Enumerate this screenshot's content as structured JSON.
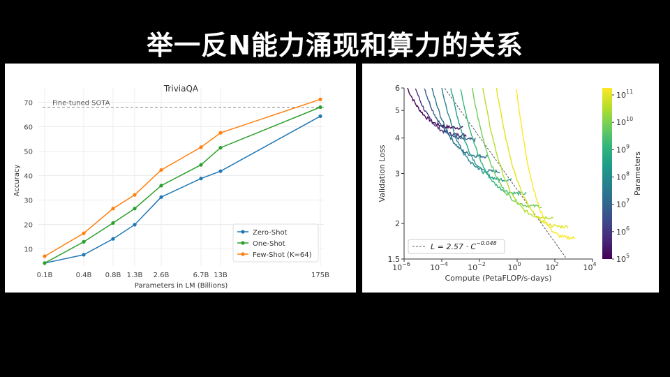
{
  "slide": {
    "title": "举一反N能力涌现和算力的关系"
  },
  "chart_data": [
    {
      "type": "line",
      "title": "TriviaQA",
      "xlabel": "Parameters in LM (Billions)",
      "ylabel": "Accuracy",
      "categories": [
        "0.1B",
        "0.4B",
        "0.8B",
        "1.3B",
        "2.6B",
        "6.7B",
        "13B",
        "175B"
      ],
      "yticks": [
        10,
        20,
        30,
        40,
        50,
        60,
        70
      ],
      "ylim": [
        3,
        73
      ],
      "grid": true,
      "legend_position": "bottom-right",
      "reference_line": {
        "label": "Fine-tuned SOTA",
        "value": 68
      },
      "series": [
        {
          "name": "Zero-Shot",
          "color": "#1f77b4",
          "values": [
            4.2,
            7.6,
            14.1,
            19.9,
            31.2,
            38.8,
            41.8,
            64.3
          ]
        },
        {
          "name": "One-Shot",
          "color": "#2ca02c",
          "values": [
            4.2,
            12.9,
            20.6,
            26.5,
            35.9,
            44.4,
            51.4,
            68.0
          ]
        },
        {
          "name": "Few-Shot (K=64)",
          "color": "#ff7f0e",
          "values": [
            7.0,
            16.4,
            26.5,
            32.1,
            42.3,
            51.6,
            57.5,
            71.2
          ]
        }
      ]
    },
    {
      "type": "line",
      "title": "",
      "xlabel": "Compute (PetaFLOP/s-days)",
      "ylabel": "Validation Loss",
      "xscale": "log",
      "yscale": "log",
      "xlim": [
        1e-06,
        10000
      ],
      "ylim": [
        1.5,
        6
      ],
      "xticks": [
        {
          "base": "10",
          "exp": "−6"
        },
        {
          "base": "10",
          "exp": "−4"
        },
        {
          "base": "10",
          "exp": "−2"
        },
        {
          "base": "10",
          "exp": "0"
        },
        {
          "base": "10",
          "exp": "2"
        },
        {
          "base": "10",
          "exp": "4"
        }
      ],
      "yticks": [
        "1.5",
        "2",
        "3",
        "4",
        "5",
        "6"
      ],
      "ytick_values": [
        1.5,
        2,
        3,
        4,
        5,
        6
      ],
      "legend_position": "bottom-left",
      "fit_line": {
        "label": "L = 2.57 · C",
        "exponent": "−0.048",
        "a": 2.57,
        "b": -0.048,
        "style": "dashed",
        "color": "#555555"
      },
      "series": [
        {
          "params": "1e5",
          "color": "#440154",
          "compute_start": 1.5e-06,
          "compute_end": 0.0013,
          "loss_start": 6.0,
          "loss_end": 4.35
        },
        {
          "params": "3e5",
          "color": "#46327e",
          "compute_start": 4e-06,
          "compute_end": 0.002,
          "loss_start": 6.0,
          "loss_end": 4.1
        },
        {
          "params": "1e6",
          "color": "#365c8d",
          "compute_start": 1.2e-05,
          "compute_end": 0.006,
          "loss_start": 6.0,
          "loss_end": 3.95
        },
        {
          "params": "3e6",
          "color": "#2c728e",
          "compute_start": 3e-05,
          "compute_end": 0.03,
          "loss_start": 6.0,
          "loss_end": 3.45
        },
        {
          "params": "1e7",
          "color": "#277f8e",
          "compute_start": 0.0001,
          "compute_end": 0.12,
          "loss_start": 6.0,
          "loss_end": 3.05
        },
        {
          "params": "3e7",
          "color": "#1f9e89",
          "compute_start": 0.0003,
          "compute_end": 0.5,
          "loss_start": 6.0,
          "loss_end": 2.85
        },
        {
          "params": "1e8",
          "color": "#35b779",
          "compute_start": 0.001,
          "compute_end": 3,
          "loss_start": 6.0,
          "loss_end": 2.55
        },
        {
          "params": "3e8",
          "color": "#6ece58",
          "compute_start": 0.004,
          "compute_end": 20,
          "loss_start": 6.0,
          "loss_end": 2.3
        },
        {
          "params": "1e9",
          "color": "#b5de2b",
          "compute_start": 0.015,
          "compute_end": 80,
          "loss_start": 6.0,
          "loss_end": 2.1
        },
        {
          "params": "1e10",
          "color": "#e0e318",
          "compute_start": 0.08,
          "compute_end": 500,
          "loss_start": 6.0,
          "loss_end": 1.95
        },
        {
          "params": "1e11",
          "color": "#fde725",
          "compute_start": 0.9,
          "compute_end": 1200,
          "loss_start": 6.0,
          "loss_end": 1.78
        }
      ],
      "colorbar": {
        "label": "Parameters",
        "ticks": [
          {
            "base": "10",
            "exp": "11"
          },
          {
            "base": "10",
            "exp": "10"
          },
          {
            "base": "10",
            "exp": "9"
          },
          {
            "base": "10",
            "exp": "8"
          },
          {
            "base": "10",
            "exp": "7"
          },
          {
            "base": "10",
            "exp": "6"
          },
          {
            "base": "10",
            "exp": "5"
          }
        ],
        "colors": [
          "#440154",
          "#482878",
          "#3e4989",
          "#31688e",
          "#26828e",
          "#1f9e89",
          "#35b779",
          "#6ece58",
          "#b5de2b",
          "#fde725"
        ]
      }
    }
  ]
}
